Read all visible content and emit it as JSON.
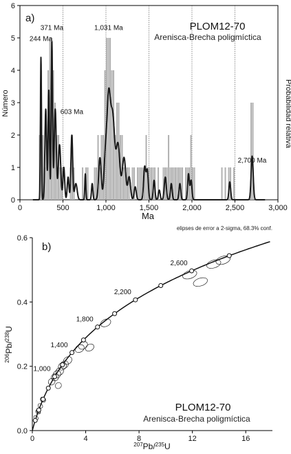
{
  "chart_data": [
    {
      "panel": "a)",
      "type": "bar",
      "title": "PLOM12-70",
      "subtitle": "Arenisca-Brecha poligmíctica",
      "xlabel": "Ma",
      "ylabel": "Número",
      "y2label": "Probabilidad relativa",
      "xlim": [
        0,
        3000
      ],
      "ylim": [
        0,
        6
      ],
      "xticks": [
        "0",
        "500",
        "1,000",
        "1,500",
        "2,000",
        "2,500",
        "3,000"
      ],
      "yticks": [
        "0",
        "1",
        "2",
        "3",
        "4",
        "5",
        "6"
      ],
      "reference_lines_x": [
        500,
        1000,
        1500,
        2000,
        2500
      ],
      "bin_width": 20,
      "histogram": {
        "name": "Número",
        "color": "#b3b3b3",
        "bin_starts": [
          220,
          240,
          260,
          280,
          300,
          320,
          340,
          360,
          380,
          400,
          420,
          440,
          460,
          480,
          580,
          600,
          620,
          720,
          760,
          780,
          860,
          880,
          900,
          920,
          940,
          960,
          980,
          1000,
          1020,
          1040,
          1060,
          1080,
          1100,
          1120,
          1140,
          1160,
          1180,
          1200,
          1220,
          1240,
          1260,
          1300,
          1320,
          1360,
          1380,
          1400,
          1420,
          1440,
          1460,
          1480,
          1500,
          1520,
          1540,
          1560,
          1600,
          1660,
          1680,
          1700,
          1720,
          1740,
          1760,
          1780,
          1800,
          1820,
          1840,
          1860,
          1880,
          1920,
          1940,
          1960,
          1980,
          2000,
          2020,
          2340,
          2380,
          2420,
          2440,
          2480,
          2680,
          2700
        ],
        "counts": [
          2,
          4,
          2,
          1,
          2,
          4,
          5,
          5,
          4,
          3,
          2,
          2,
          1,
          1,
          1,
          2,
          1,
          1,
          1,
          1,
          1,
          1,
          2,
          1,
          2,
          2,
          4,
          5,
          5,
          5,
          4,
          4,
          2,
          3,
          3,
          2,
          2,
          1,
          1,
          1,
          1,
          1,
          1,
          1,
          1,
          1,
          1,
          1,
          2,
          1,
          1,
          1,
          1,
          1,
          1,
          1,
          1,
          1,
          2,
          1,
          1,
          1,
          1,
          1,
          1,
          1,
          1,
          1,
          1,
          1,
          2,
          1,
          1,
          1,
          1,
          1,
          1,
          1,
          3,
          3
        ]
      },
      "probability_curve": {
        "name": "Probabilidad relativa",
        "color": "#1a1a1a",
        "peaks": [
          {
            "age": 244,
            "height": 4.4,
            "width": 6
          },
          {
            "age": 300,
            "height": 2.8,
            "width": 10
          },
          {
            "age": 335,
            "height": 3.4,
            "width": 8
          },
          {
            "age": 371,
            "height": 4.9,
            "width": 8
          },
          {
            "age": 410,
            "height": 2.8,
            "width": 12
          },
          {
            "age": 460,
            "height": 1.7,
            "width": 14
          },
          {
            "age": 510,
            "height": 1.0,
            "width": 10
          },
          {
            "age": 560,
            "height": 0.7,
            "width": 10
          },
          {
            "age": 603,
            "height": 2.0,
            "width": 10
          },
          {
            "age": 650,
            "height": 0.5,
            "width": 15
          },
          {
            "age": 760,
            "height": 0.8,
            "width": 6
          },
          {
            "age": 840,
            "height": 0.5,
            "width": 8
          },
          {
            "age": 930,
            "height": 1.3,
            "width": 15
          },
          {
            "age": 990,
            "height": 1.0,
            "width": 15
          },
          {
            "age": 1031,
            "height": 3.2,
            "width": 22
          },
          {
            "age": 1080,
            "height": 2.4,
            "width": 22
          },
          {
            "age": 1140,
            "height": 1.7,
            "width": 22
          },
          {
            "age": 1210,
            "height": 1.3,
            "width": 20
          },
          {
            "age": 1270,
            "height": 0.7,
            "width": 15
          },
          {
            "age": 1340,
            "height": 0.4,
            "width": 12
          },
          {
            "age": 1450,
            "height": 1.0,
            "width": 12
          },
          {
            "age": 1480,
            "height": 0.9,
            "width": 12
          },
          {
            "age": 1560,
            "height": 0.6,
            "width": 10
          },
          {
            "age": 1620,
            "height": 0.3,
            "width": 10
          },
          {
            "age": 1690,
            "height": 0.7,
            "width": 12
          },
          {
            "age": 1760,
            "height": 0.5,
            "width": 10
          },
          {
            "age": 1860,
            "height": 0.5,
            "width": 10
          },
          {
            "age": 1960,
            "height": 0.8,
            "width": 10
          },
          {
            "age": 1990,
            "height": 0.6,
            "width": 10
          },
          {
            "age": 2440,
            "height": 0.55,
            "width": 10
          },
          {
            "age": 2700,
            "height": 1.35,
            "width": 12
          }
        ]
      },
      "annotations": [
        {
          "text": "244 Ma",
          "age": 244,
          "count": 4.9
        },
        {
          "text": "371 Ma",
          "age": 371,
          "count": 5.25
        },
        {
          "text": "603 Ma",
          "age": 603,
          "count": 2.65
        },
        {
          "text": "1,031 Ma",
          "age": 1031,
          "count": 5.25
        },
        {
          "text": "2,700 Ma",
          "age": 2700,
          "count": 1.15
        }
      ]
    },
    {
      "panel": "b)",
      "type": "scatter",
      "title": "PLOM12-70",
      "subtitle": "Arenisca-Brecha poligmíctica",
      "note": "elipses de error a 2-sigma, 68.3% conf.",
      "xlabel_base": "Pb/",
      "xlabel_sup1": "207",
      "xlabel_sup2": "235",
      "xlabel_end": "U",
      "ylabel_base": "Pb/",
      "ylabel_sup1": "206",
      "ylabel_sup2": "238",
      "ylabel_end": "U",
      "xlim": [
        0,
        18
      ],
      "ylim": [
        0,
        0.6
      ],
      "xticks": [
        0,
        4,
        8,
        12,
        16
      ],
      "yticks": [
        0.0,
        0.2,
        0.4,
        0.6
      ],
      "concordia_markers_ma": [
        200,
        400,
        600,
        800,
        1000,
        1200,
        1400,
        1600,
        1800,
        2000,
        2200,
        2400,
        2600,
        2800
      ],
      "concordia_labels": [
        {
          "text": "1,000",
          "age": 1000
        },
        {
          "text": "1,400",
          "age": 1400
        },
        {
          "text": "1,800",
          "age": 1800
        },
        {
          "text": "2,200",
          "age": 2200
        },
        {
          "text": "2,600",
          "age": 2600
        }
      ],
      "ellipses": [
        {
          "x": 0.28,
          "y": 0.04,
          "rx": 0.12,
          "ry": 0.008,
          "angle": 55
        },
        {
          "x": 0.43,
          "y": 0.058,
          "rx": 0.14,
          "ry": 0.008,
          "angle": 55
        },
        {
          "x": 0.46,
          "y": 0.06,
          "rx": 0.12,
          "ry": 0.007,
          "angle": 55
        },
        {
          "x": 0.6,
          "y": 0.077,
          "rx": 0.15,
          "ry": 0.008,
          "angle": 50
        },
        {
          "x": 0.8,
          "y": 0.096,
          "rx": 0.18,
          "ry": 0.009,
          "angle": 50
        },
        {
          "x": 1.7,
          "y": 0.166,
          "rx": 0.28,
          "ry": 0.011,
          "angle": 40
        },
        {
          "x": 1.85,
          "y": 0.175,
          "rx": 0.3,
          "ry": 0.011,
          "angle": 40
        },
        {
          "x": 1.45,
          "y": 0.152,
          "rx": 0.26,
          "ry": 0.01,
          "angle": 42
        },
        {
          "x": 1.95,
          "y": 0.14,
          "rx": 0.24,
          "ry": 0.009,
          "angle": 38
        },
        {
          "x": 2.05,
          "y": 0.184,
          "rx": 0.3,
          "ry": 0.011,
          "angle": 38
        },
        {
          "x": 2.25,
          "y": 0.2,
          "rx": 0.32,
          "ry": 0.011,
          "angle": 36
        },
        {
          "x": 2.4,
          "y": 0.205,
          "rx": 0.32,
          "ry": 0.011,
          "angle": 36
        },
        {
          "x": 2.65,
          "y": 0.218,
          "rx": 0.34,
          "ry": 0.011,
          "angle": 34
        },
        {
          "x": 3.55,
          "y": 0.255,
          "rx": 0.36,
          "ry": 0.011,
          "angle": 30
        },
        {
          "x": 3.8,
          "y": 0.265,
          "rx": 0.36,
          "ry": 0.011,
          "angle": 30
        },
        {
          "x": 4.3,
          "y": 0.258,
          "rx": 0.34,
          "ry": 0.01,
          "angle": 28
        },
        {
          "x": 5.5,
          "y": 0.335,
          "rx": 0.4,
          "ry": 0.011,
          "angle": 25
        },
        {
          "x": 11.8,
          "y": 0.485,
          "rx": 0.55,
          "ry": 0.012,
          "angle": 18
        },
        {
          "x": 12.6,
          "y": 0.462,
          "rx": 0.55,
          "ry": 0.012,
          "angle": 18
        },
        {
          "x": 13.6,
          "y": 0.518,
          "rx": 0.55,
          "ry": 0.012,
          "angle": 18
        },
        {
          "x": 14.3,
          "y": 0.53,
          "rx": 0.55,
          "ry": 0.012,
          "angle": 18
        }
      ]
    }
  ]
}
